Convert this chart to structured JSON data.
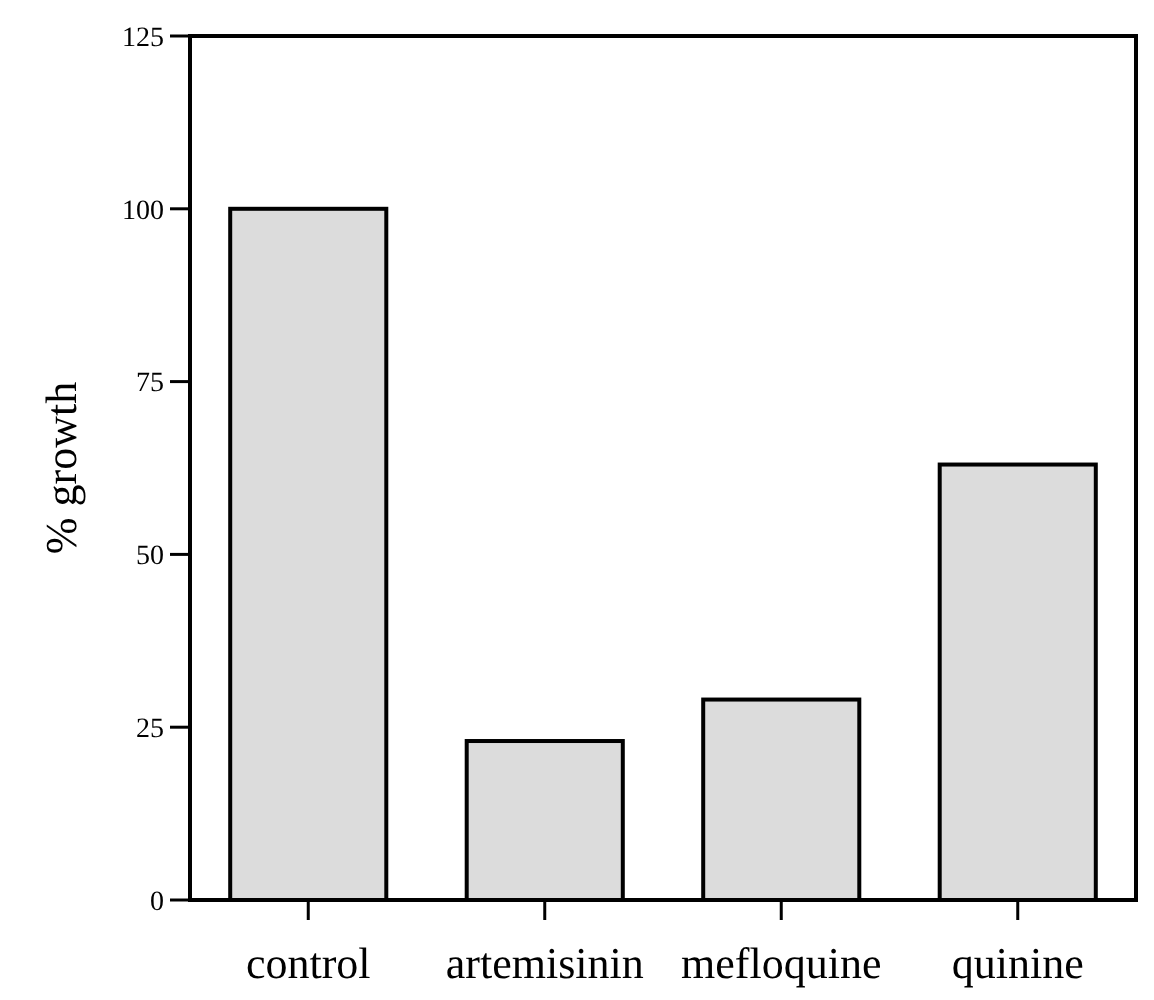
{
  "chart_data": {
    "type": "bar",
    "ylabel": "% growth",
    "categories": [
      "control",
      "artemisinin",
      "mefloquine",
      "quinine"
    ],
    "values": [
      100,
      23,
      29,
      63
    ],
    "color": "#dcdcdc",
    "ylim": [
      0,
      125
    ],
    "yticks": [
      0,
      25,
      50,
      75,
      100,
      125
    ]
  }
}
